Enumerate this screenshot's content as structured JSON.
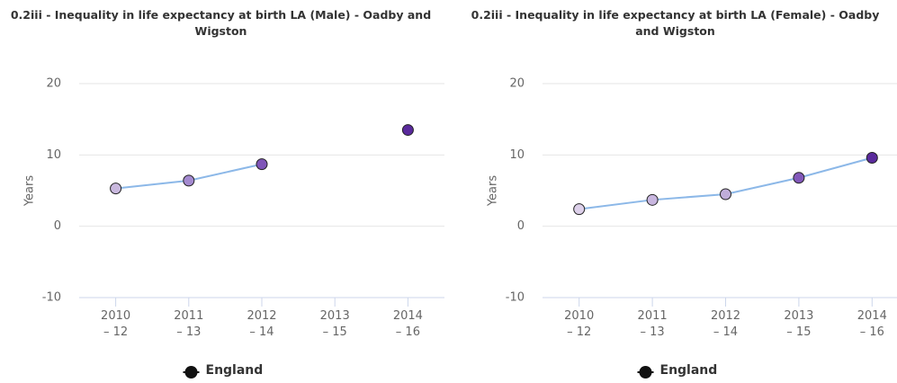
{
  "chart_data": [
    {
      "type": "line",
      "title": "0.2iii - Inequality in life expectancy at birth LA (Male) - Oadby and Wigston",
      "y_label": "Years",
      "categories": [
        "2010 – 12",
        "2011 – 13",
        "2012 – 14",
        "2013 – 15",
        "2014 – 16"
      ],
      "series": [
        {
          "name": "England",
          "color": "#8cb8e8",
          "legend_color": "#111111",
          "values": [
            5.3,
            6.4,
            8.7,
            null,
            13.5
          ],
          "point_colors": [
            "#c9b8de",
            "#a48ad0",
            "#7f55b8",
            null,
            "#5a2a9c"
          ]
        }
      ],
      "ylim": [
        -10,
        20
      ],
      "yticks": [
        -10,
        0,
        10,
        20
      ],
      "grid": true,
      "legend": "bottom"
    },
    {
      "type": "line",
      "title": "0.2iii - Inequality in life expectancy at birth LA (Female) - Oadby and Wigston",
      "y_label": "Years",
      "categories": [
        "2010 – 12",
        "2011 – 13",
        "2012 – 14",
        "2013 – 15",
        "2014 – 16"
      ],
      "series": [
        {
          "name": "England",
          "color": "#8cb8e8",
          "legend_color": "#111111",
          "values": [
            2.4,
            3.7,
            4.5,
            6.8,
            9.6
          ],
          "point_colors": [
            "#ddd0ea",
            "#c8b6df",
            "#c0add9",
            "#8258ba",
            "#5a2a9c"
          ]
        }
      ],
      "ylim": [
        -10,
        20
      ],
      "yticks": [
        -10,
        0,
        10,
        20
      ],
      "grid": true,
      "legend": "bottom"
    }
  ]
}
